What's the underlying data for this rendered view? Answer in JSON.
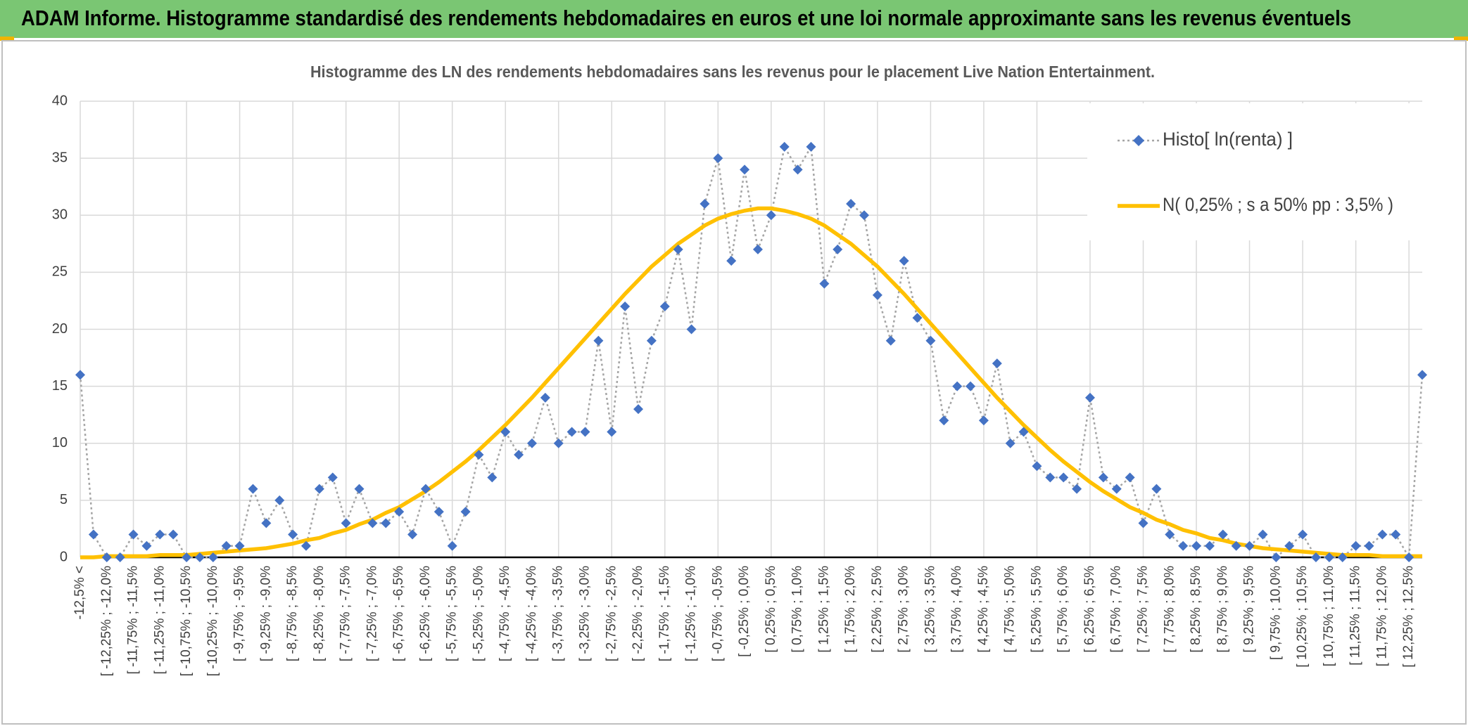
{
  "header": {
    "title": "ADAM Informe. Histogramme standardisé des rendements hebdomadaires en euros et une loi normale approximante sans les revenus éventuels"
  },
  "chart_data": {
    "type": "line",
    "title": "Histogramme des LN des rendements hebdomadaires sans les revenus pour le placement Live Nation Entertainment.",
    "categories": [
      "-12,5% <",
      null,
      "[ -12,25% ; -12,0%",
      null,
      "[ -11,75% ; -11,5%",
      null,
      "[ -11,25% ; -11,0%",
      null,
      "[ -10,75% ; -10,5%",
      null,
      "[ -10,25% ; -10,0%",
      null,
      "[ -9,75% ; -9,5%",
      null,
      "[ -9,25% ; -9,0%",
      null,
      "[ -8,75% ; -8,5%",
      null,
      "[ -8,25% ; -8,0%",
      null,
      "[ -7,75% ; -7,5%",
      null,
      "[ -7,25% ; -7,0%",
      null,
      "[ -6,75% ; -6,5%",
      null,
      "[ -6,25% ; -6,0%",
      null,
      "[ -5,75% ; -5,5%",
      null,
      "[ -5,25% ; -5,0%",
      null,
      "[ -4,75% ; -4,5%",
      null,
      "[ -4,25% ; -4,0%",
      null,
      "[ -3,75% ; -3,5%",
      null,
      "[ -3,25% ; -3,0%",
      null,
      "[ -2,75% ; -2,5%",
      null,
      "[ -2,25% ; -2,0%",
      null,
      "[ -1,75% ; -1,5%",
      null,
      "[ -1,25% ; -1,0%",
      null,
      "[ -0,75% ; -0,5%",
      null,
      "[ -0,25% ; 0,0%",
      null,
      "[ 0,25% ; 0,5%",
      null,
      "[ 0,75% ; 1,0%",
      null,
      "[ 1,25% ; 1,5%",
      null,
      "[ 1,75% ; 2,0%",
      null,
      "[ 2,25% ; 2,5%",
      null,
      "[ 2,75% ; 3,0%",
      null,
      "[ 3,25% ; 3,5%",
      null,
      "[ 3,75% ; 4,0%",
      null,
      "[ 4,25% ; 4,5%",
      null,
      "[ 4,75% ; 5,0%",
      null,
      "[ 5,25% ; 5,5%",
      null,
      "[ 5,75% ; 6,0%",
      null,
      "[ 6,25% ; 6,5%",
      null,
      "[ 6,75% ; 7,0%",
      null,
      "[ 7,25% ; 7,5%",
      null,
      "[ 7,75% ; 8,0%",
      null,
      "[ 8,25% ; 8,5%",
      null,
      "[ 8,75% ; 9,0%",
      null,
      "[ 9,25% ; 9,5%",
      null,
      "[ 9,75% ; 10,0%",
      null,
      "[ 10,25% ; 10,5%",
      null,
      "[ 10,75% ; 11,0%",
      null,
      "[ 11,25% ; 11,5%",
      null,
      "[ 11,75% ; 12,0%",
      null,
      "[ 12,25% ; 12,5%",
      null
    ],
    "series": [
      {
        "name": "Histo[ ln(renta) ]",
        "color": "#4472c4",
        "values": [
          16,
          2,
          0,
          0,
          2,
          1,
          2,
          2,
          0,
          0,
          0,
          1,
          1,
          6,
          3,
          5,
          2,
          1,
          6,
          7,
          3,
          6,
          3,
          3,
          4,
          2,
          6,
          4,
          1,
          4,
          9,
          7,
          11,
          9,
          10,
          14,
          10,
          11,
          11,
          19,
          11,
          22,
          13,
          19,
          22,
          27,
          20,
          31,
          35,
          26,
          34,
          27,
          30,
          36,
          34,
          36,
          24,
          27,
          31,
          30,
          23,
          19,
          26,
          21,
          19,
          12,
          15,
          15,
          12,
          17,
          10,
          11,
          8,
          7,
          7,
          6,
          14,
          7,
          6,
          7,
          3,
          6,
          2,
          1,
          1,
          1,
          2,
          1,
          1,
          2,
          0,
          1,
          2,
          0,
          0,
          0,
          1,
          1,
          2,
          2,
          0,
          16
        ]
      },
      {
        "name": "N( 0,25% ; s a 50% pp : 3,5% )",
        "color": "#ffc000",
        "values": [
          0.0,
          0.0,
          0.1,
          0.1,
          0.1,
          0.1,
          0.2,
          0.2,
          0.2,
          0.3,
          0.4,
          0.5,
          0.6,
          0.7,
          0.8,
          1.0,
          1.2,
          1.5,
          1.7,
          2.1,
          2.4,
          2.9,
          3.3,
          3.9,
          4.4,
          5.1,
          5.8,
          6.6,
          7.5,
          8.4,
          9.4,
          10.5,
          11.6,
          12.8,
          14.0,
          15.3,
          16.6,
          17.9,
          19.2,
          20.5,
          21.8,
          23.1,
          24.3,
          25.5,
          26.5,
          27.5,
          28.3,
          29.1,
          29.7,
          30.1,
          30.4,
          30.6,
          30.6,
          30.4,
          30.1,
          29.7,
          29.1,
          28.3,
          27.5,
          26.5,
          25.5,
          24.3,
          23.1,
          21.8,
          20.5,
          19.2,
          17.9,
          16.6,
          15.3,
          14.0,
          12.8,
          11.6,
          10.5,
          9.4,
          8.4,
          7.5,
          6.6,
          5.8,
          5.1,
          4.4,
          3.9,
          3.3,
          2.9,
          2.4,
          2.1,
          1.7,
          1.5,
          1.2,
          1.0,
          0.8,
          0.7,
          0.6,
          0.5,
          0.4,
          0.3,
          0.2,
          0.2,
          0.2,
          0.1,
          0.1,
          0.1,
          0.1
        ]
      }
    ],
    "ylim": [
      0,
      40
    ],
    "yticks": [
      0,
      5,
      10,
      15,
      20,
      25,
      30,
      35,
      40
    ],
    "grid": true,
    "legend": "upper right"
  }
}
